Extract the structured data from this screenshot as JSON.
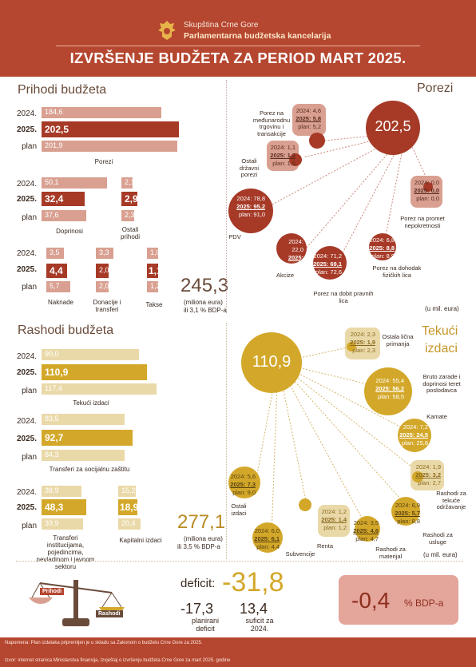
{
  "header": {
    "org1": "Skupština Crne Gore",
    "org2": "Parlamentarna budžetska kancelarija",
    "title": "IZVRŠENJE BUDŽETA ZA PERIOD MART 2025."
  },
  "colors": {
    "brand": "#b5462f",
    "revenue_dark": "#a63a27",
    "revenue_light": "#d9a091",
    "expense_dark": "#d3a82a",
    "expense_light": "#ead9a8"
  },
  "prihodi": {
    "title": "Prihodi budžeta",
    "row_labels": {
      "y2024": "2024.",
      "y2025": "2025.",
      "plan": "plan"
    },
    "porezi": {
      "caption": "Porezi",
      "v2024": "184,6",
      "v2025": "202,5",
      "plan": "201,9"
    },
    "doprinosi": {
      "caption": "Doprinosi",
      "v2024": "50,1",
      "v2025": "32,4",
      "plan": "37,6"
    },
    "ostali": {
      "caption": "Ostali prihodi",
      "v2024": "2,1",
      "v2025": "2,9",
      "plan": "2,3"
    },
    "naknade": {
      "caption": "Naknade",
      "v2024": "3,5",
      "v2025": "4,4",
      "plan": "5,7"
    },
    "donacije": {
      "caption": "Donacije i transferi",
      "v2024": "3,3",
      "v2025": "2,0",
      "plan": "2,0"
    },
    "takse": {
      "caption": "Takse",
      "v2024": "1,0",
      "v2025": "1,1",
      "plan": "1,2"
    },
    "total": "245,3",
    "total_unit": "(miliona eura)",
    "total_bdp": "ili 3,1 % BDP-a"
  },
  "porezi_panel": {
    "title": "Porezi",
    "total": "202,5",
    "unit": "(u mil. eura)",
    "pdv": {
      "label": "PDV",
      "y2024": "2024: 78,8",
      "y2025": "2025: 95,2",
      "plan": "plan: 91,0"
    },
    "medjunarodna": {
      "label": "Porez na međunarodnu trgovinu i transakcije",
      "y2024": "2024: 4,6",
      "y2025": "2025: 5,8",
      "plan": "plan: 5,2"
    },
    "ostali_drzavni": {
      "label": "Ostali državni porezi",
      "y2024": "2024: 1,1",
      "y2025": "2025: 1,2",
      "plan": "plan: 1,5"
    },
    "promet_nep": {
      "label": "Porez na promet nepokretnosti",
      "y2024": "2024: 0,0",
      "y2025": "2025: 0,0",
      "plan": "plan: 0,0"
    },
    "akcize": {
      "label": "Akcize",
      "y2024": "2024: 22,0",
      "y2025": "2025: 22,4",
      "plan": "plan: 23,0"
    },
    "dobit": {
      "label": "Porez na dobit pravnih lica",
      "y2024": "2024: 71,2",
      "y2025": "2025: 69,1",
      "plan": "plan: 72,6"
    },
    "dohodak": {
      "label": "Porez na dohodak fizičkih lica",
      "y2024": "2024: 6,8",
      "y2025": "2025: 8,8",
      "plan": "plan: 8,9"
    }
  },
  "rashodi": {
    "title": "Rashodi budžeta",
    "tekuci": {
      "caption": "Tekući izdaci",
      "v2024": "90,0",
      "v2025": "110,9",
      "plan": "117,4"
    },
    "transferi": {
      "caption": "Transferi za socijalnu zaštitu",
      "v2024": "83,5",
      "v2025": "92,7",
      "plan": "84,3"
    },
    "transferi_inst": {
      "caption": "Transferi institucijama, pojedincima, nevladinom i javnom sektoru",
      "v2024": "38,9",
      "v2025": "48,3",
      "plan": "39,9"
    },
    "kapitalni": {
      "caption": "Kapitalni izdaci",
      "v2024": "15,2",
      "v2025": "18,9",
      "plan": "20,4"
    },
    "total": "277,1",
    "total_unit": "(miliona eura)",
    "total_bdp": "ili 3,5 % BDP-a"
  },
  "tekuci_panel": {
    "title1": "Tekući",
    "title2": "izdaci",
    "total": "110,9",
    "unit": "(u mil. eura)",
    "ostala_primanja": {
      "label": "Ostala lična primanja",
      "y2024": "2024: 2,3",
      "y2025": "2025: 1,9",
      "plan": "plan: 2,3"
    },
    "bruto_zarade": {
      "label": "Bruto zarade i doprinosi teret poslodavca",
      "y2024": "2024: 55,4",
      "y2025": "2025: 56,2",
      "plan": "plan: 58,5"
    },
    "kamate": {
      "label": "Kamate",
      "y2024": "2024: 7,2",
      "y2025": "2025: 24,5",
      "plan": "plan: 25,8"
    },
    "tekuce_odrz": {
      "label": "Rashodi za tekuće održavanje",
      "y2024": "2024: 1,9",
      "y2025": "2025: 3,2",
      "plan": "plan: 2,7"
    },
    "usluge": {
      "label": "Rashodi za usluge",
      "y2024": "2024: 6,9",
      "y2025": "2025: 5,7",
      "plan": "plan: 8,8"
    },
    "materijal": {
      "label": "Rashodi za materijal",
      "y2024": "2024: 3,5",
      "y2025": "2025: 4,6",
      "plan": "plan: 4,7"
    },
    "renta": {
      "label": "Renta",
      "y2024": "2024: 1,2",
      "y2025": "2025: 1,4",
      "plan": "plan: 1,2"
    },
    "subvencije": {
      "label": "Subvencije",
      "y2024": "2024: 6,0",
      "y2025": "2025: 6,1",
      "plan": "plan: 4,4"
    },
    "ostali_izdaci": {
      "label": "Ostali izdaci",
      "y2024": "2024: 5,6",
      "y2025": "2025: 7,3",
      "plan": "plan: 9,0"
    }
  },
  "deficit": {
    "scale_left": "Prihodi",
    "scale_right": "Rashodi",
    "label": "deficit:",
    "value": "-31,8",
    "plan_value": "-17,3",
    "plan_label": "planirani deficit",
    "y2024_value": "13,4",
    "y2024_label": "suficit za 2024.",
    "bdp_value": "-0,4",
    "bdp_unit": "% BDP-a"
  },
  "footer": {
    "note": "Napomena: Plan izdataka pripremljen je u skladu sa Zakonom o budžetu Crne Gore za 2025.",
    "source": "Izvor: internet stranica Ministarstva finansija, Izvještaj o izvršenju budžeta Crne Gore za mart 2025. godine"
  }
}
